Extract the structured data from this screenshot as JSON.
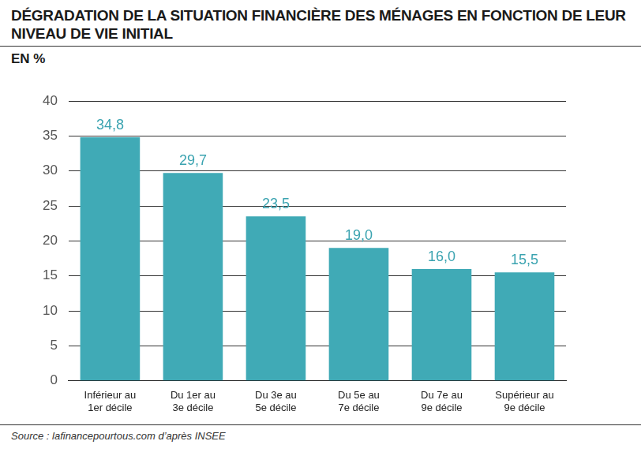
{
  "chart_data": {
    "type": "bar",
    "title": "DÉGRADATION DE LA SITUATION FINANCIÈRE DES MÉNAGES EN FONCTION DE LEUR NIVEAU DE VIE INITIAL",
    "subtitle": "EN %",
    "source": "Source : lafinancepourtous.com d’après INSEE",
    "categories": [
      "Inférieur au 1er décile",
      "Du 1er au 3e décile",
      "Du 3e au 5e décile",
      "Du 5e au 7e décile",
      "Du 7e au 9e décile",
      "Supérieur au 9e décile"
    ],
    "values": [
      34.8,
      29.7,
      23.5,
      19.0,
      16.0,
      15.5
    ],
    "value_labels": [
      "34,8",
      "29,7",
      "23,5",
      "19,0",
      "16,0",
      "15,5"
    ],
    "data_labels": true,
    "color": "#40aab6",
    "ylim": [
      0,
      40
    ],
    "yticks": [
      0,
      5,
      10,
      15,
      20,
      25,
      30,
      35,
      40
    ],
    "grid": true
  }
}
